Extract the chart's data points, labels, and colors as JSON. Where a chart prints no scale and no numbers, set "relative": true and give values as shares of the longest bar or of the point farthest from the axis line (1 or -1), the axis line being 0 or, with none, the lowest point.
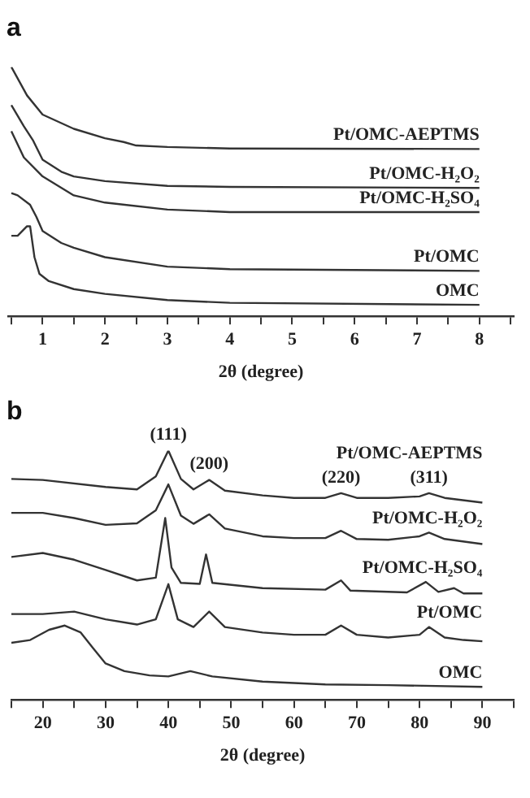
{
  "chart_data": [
    {
      "type": "line",
      "title": "a",
      "xlabel": "2θ (degree)",
      "relative": true,
      "tick_labels": "x",
      "xlim": [
        0.45,
        8.55
      ],
      "xticks": [
        {
          "value": 0.5,
          "label": null
        },
        1,
        {
          "value": 1.5,
          "label": null
        },
        2,
        {
          "value": 2.5,
          "label": null
        },
        3,
        {
          "value": 3.5,
          "label": null
        },
        4,
        {
          "value": 4.5,
          "label": null
        },
        5,
        {
          "value": 5.5,
          "label": null
        },
        6,
        {
          "value": 6.5,
          "label": null
        },
        7,
        {
          "value": 7.5,
          "label": null
        },
        8,
        {
          "value": 8.5,
          "label": null
        }
      ],
      "series": [
        {
          "name": "Pt/OMC-AEPTMS",
          "color": "#333333",
          "x": [
            0.5,
            0.75,
            1,
            1.5,
            2,
            2.3,
            2.5,
            3,
            4,
            8
          ],
          "values": [
            1.0,
            0.886,
            0.809,
            0.752,
            0.714,
            0.699,
            0.685,
            0.679,
            0.673,
            0.671
          ]
        },
        {
          "name": "Pt/OMC-H₂O₂",
          "color": "#333333",
          "x": [
            0.5,
            0.7,
            0.85,
            1,
            1.3,
            1.5,
            2,
            3,
            4,
            8
          ],
          "values": [
            0.847,
            0.762,
            0.704,
            0.628,
            0.58,
            0.561,
            0.542,
            0.523,
            0.519,
            0.515
          ]
        },
        {
          "name": "Pt/OMC-H₂SO₄",
          "color": "#333333",
          "x": [
            0.5,
            0.7,
            1,
            1.5,
            2,
            3,
            4,
            8
          ],
          "values": [
            0.742,
            0.637,
            0.561,
            0.485,
            0.456,
            0.428,
            0.418,
            0.418
          ]
        },
        {
          "name": "Pt/OMC",
          "color": "#333333",
          "x": [
            0.5,
            0.6,
            0.8,
            0.9,
            1,
            1.3,
            1.5,
            2,
            3,
            4,
            8
          ],
          "values": [
            0.494,
            0.485,
            0.447,
            0.399,
            0.342,
            0.294,
            0.275,
            0.237,
            0.199,
            0.189,
            0.182
          ]
        },
        {
          "name": "OMC",
          "color": "#333333",
          "x": [
            0.5,
            0.6,
            0.75,
            0.8,
            0.87,
            0.95,
            1.1,
            1.5,
            2,
            3,
            4,
            8
          ],
          "values": [
            0.323,
            0.323,
            0.361,
            0.361,
            0.237,
            0.17,
            0.141,
            0.109,
            0.09,
            0.065,
            0.054,
            0.046
          ]
        }
      ]
    },
    {
      "type": "line",
      "title": "b",
      "xlabel": "2θ (degree)",
      "relative": true,
      "tick_labels": "x",
      "xlim": [
        15,
        95
      ],
      "xticks": [
        {
          "value": 15,
          "label": null
        },
        20,
        {
          "value": 25,
          "label": null
        },
        30,
        {
          "value": 35,
          "label": null
        },
        40,
        {
          "value": 45,
          "label": null
        },
        50,
        {
          "value": 55,
          "label": null
        },
        60,
        {
          "value": 65,
          "label": null
        },
        70,
        {
          "value": 75,
          "label": null
        },
        80,
        {
          "value": 85,
          "label": null
        },
        90,
        {
          "value": 95,
          "label": null
        }
      ],
      "annotations": [
        {
          "text": "(111)",
          "x": 40,
          "y": 1.0
        },
        {
          "text": "(200)",
          "x": 46.5,
          "y": 0.882
        },
        {
          "text": "(220)",
          "x": 67.5,
          "y": 0.829
        },
        {
          "text": "(311)",
          "x": 81.5,
          "y": 0.829
        }
      ],
      "series": [
        {
          "name": "Pt/OMC-AEPTMS",
          "color": "#333333",
          "x": [
            15,
            20,
            30,
            35,
            38,
            40,
            42,
            44,
            46.5,
            49,
            55,
            60,
            65,
            67.5,
            70,
            75,
            80,
            81.5,
            84,
            90
          ],
          "values": [
            0.886,
            0.882,
            0.854,
            0.844,
            0.896,
            1.0,
            0.886,
            0.844,
            0.882,
            0.839,
            0.82,
            0.81,
            0.81,
            0.829,
            0.81,
            0.81,
            0.816,
            0.829,
            0.81,
            0.791
          ]
        },
        {
          "name": "Pt/OMC-H₂O₂",
          "color": "#333333",
          "x": [
            15,
            20,
            25,
            30,
            35,
            38,
            40,
            42,
            44,
            46.5,
            49,
            55,
            60,
            65,
            67.5,
            70,
            75,
            80,
            81.5,
            84,
            90
          ],
          "values": [
            0.75,
            0.75,
            0.729,
            0.702,
            0.708,
            0.76,
            0.864,
            0.739,
            0.706,
            0.744,
            0.687,
            0.656,
            0.649,
            0.649,
            0.678,
            0.645,
            0.642,
            0.656,
            0.671,
            0.645,
            0.625
          ]
        },
        {
          "name": "Pt/OMC-H₂SO₄",
          "color": "#333333",
          "x": [
            15,
            20,
            25,
            30,
            35,
            38,
            39.5,
            40.5,
            42,
            45,
            46,
            47,
            55,
            65,
            67.5,
            69,
            78,
            81,
            83,
            85.5,
            87,
            90
          ],
          "values": [
            0.573,
            0.589,
            0.562,
            0.521,
            0.479,
            0.49,
            0.729,
            0.531,
            0.469,
            0.465,
            0.583,
            0.469,
            0.448,
            0.442,
            0.479,
            0.438,
            0.431,
            0.473,
            0.433,
            0.448,
            0.427,
            0.427
          ]
        },
        {
          "name": "Pt/OMC",
          "color": "#333333",
          "x": [
            15,
            20,
            25,
            30,
            35,
            38,
            40,
            41.5,
            44,
            46.5,
            49,
            55,
            60,
            65,
            67.5,
            70,
            75,
            80,
            81.5,
            84,
            87,
            90
          ],
          "values": [
            0.344,
            0.344,
            0.354,
            0.323,
            0.302,
            0.323,
            0.464,
            0.323,
            0.292,
            0.354,
            0.292,
            0.27,
            0.261,
            0.261,
            0.298,
            0.261,
            0.25,
            0.261,
            0.292,
            0.25,
            0.24,
            0.235
          ]
        },
        {
          "name": "OMC",
          "color": "#333333",
          "x": [
            15,
            18,
            21,
            23.5,
            26,
            28,
            30,
            33,
            37,
            40,
            43.5,
            47,
            55,
            65,
            75,
            90
          ],
          "values": [
            0.229,
            0.24,
            0.281,
            0.298,
            0.271,
            0.208,
            0.146,
            0.115,
            0.098,
            0.094,
            0.115,
            0.094,
            0.073,
            0.062,
            0.059,
            0.052
          ]
        }
      ]
    }
  ]
}
